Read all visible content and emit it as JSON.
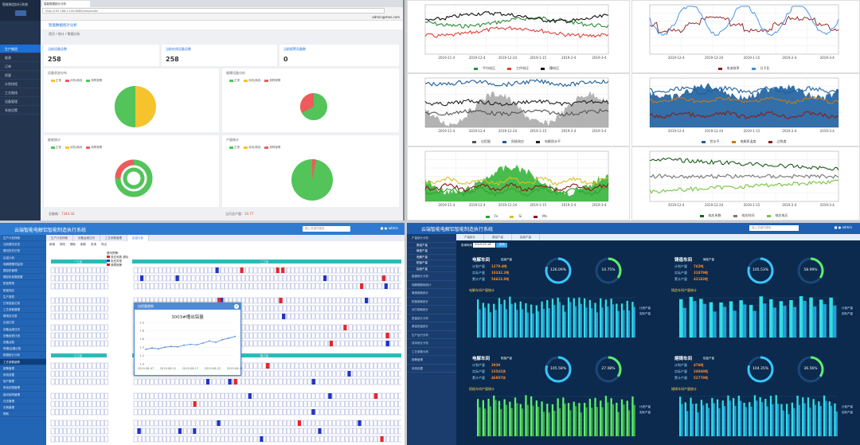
{
  "q1": {
    "brand": "智能制造执行系统",
    "sidebar": [
      "生产制造",
      "能源",
      "订单",
      "质量",
      "计划排程",
      "工艺路线",
      "设备管理",
      "系统设置"
    ],
    "browser_tab": "智能数据统计分析",
    "address": "http://192.168.1.100:8080/mes/index",
    "user": "admin@mes.com",
    "header": "智能数据统计分析",
    "crumb": "首页 / 统计 / 数据分析",
    "stats": [
      {
        "label": "当前设备总数",
        "value": "258"
      },
      {
        "label": "当前在线设备总数",
        "value": "258"
      },
      {
        "label": "当前报警设备数",
        "value": "0"
      }
    ],
    "panels": [
      {
        "title": "设备状态分布",
        "legend": [
          "正常",
          "待机/离线",
          "故障报警"
        ]
      },
      {
        "title": "故障设备分析",
        "legend": [
          "正常",
          "待机/离线",
          "故障报警"
        ]
      },
      {
        "title": "能耗统计",
        "legend": [
          "正常",
          "待机/离线",
          "故障报警"
        ]
      },
      {
        "title": "产量统计",
        "legend": [
          "正常",
          "待机/离线",
          "故障报警"
        ]
      }
    ],
    "footer_left_label": "总能耗：",
    "footer_left_value": "7344.32",
    "footer_right_label": "当月总产量：",
    "footer_right_value": "10.77",
    "colors": {
      "green": "#52c45a",
      "yellow": "#f5c42c",
      "red": "#ef5b5b"
    }
  },
  "q2": {
    "charts": [
      {
        "legend": [
          "平均电压",
          "工作电压",
          "槽电压"
        ],
        "colors": [
          "#2f8c38",
          "#e0413a",
          "#111111"
        ]
      },
      {
        "legend": [
          "电流效率",
          "分子比"
        ],
        "colors": [
          "#8c1b1b",
          "#3a8ee6"
        ]
      },
      {
        "legend": [
          "出铝量",
          "阳极效应",
          "电解质水平"
        ],
        "colors": [
          "#555555",
          "#1b5c9a",
          "#222222"
        ]
      },
      {
        "legend": [
          "铝水平",
          "电解质温度",
          "过热度"
        ],
        "colors": [
          "#1d5f9f",
          "#c77a1a",
          "#8c1b1b"
        ]
      },
      {
        "legend": [
          "Fe",
          "Si",
          "Mn"
        ],
        "colors": [
          "#2fa32f",
          "#d7c21c",
          "#8c1b1b"
        ]
      },
      {
        "legend": [
          "效应系数",
          "效应时间",
          "效应电压"
        ],
        "colors": [
          "#1b5e20",
          "#777777",
          "#76c442"
        ]
      }
    ],
    "x_ticks": [
      "2019-11-4",
      "2019-12-4",
      "2019-12-24",
      "2019-1-15",
      "2019-2-4",
      "2019-3-4"
    ],
    "x_ticks_short": [
      "2019-12-4",
      "2019-12-24",
      "2019-1-15",
      "2019-2-4",
      "2019-3-4"
    ]
  },
  "q3": {
    "title": "云端智能电解铝智能制造执行系统",
    "search": "输入关键词搜索",
    "user": "admin",
    "tabs": [
      "生产计划排程",
      "设备运维日历",
      "工艺参数管理",
      "出铝计划"
    ],
    "toolbar": [
      "新增",
      "修改",
      "删除",
      "刷新",
      "查询",
      "导出"
    ],
    "sidebar": [
      "生产计划排程",
      "当前槽况总览",
      "槽况历史记录",
      "出铝计划",
      "电解槽槽况监测",
      "槽控机管理",
      "槽控机参数配置",
      "阳极更换",
      "阳极效应",
      "生产报表",
      "日常巡检记录",
      "工艺参数管理",
      "槽电压记录",
      "出铝记录",
      "设备运维日历",
      "设备检修计划",
      "设备台账",
      "停槽/启槽记录",
      "数据统计分析",
      "工艺参数趋势",
      "报警管理",
      "系统设置",
      "用户管理",
      "角色权限管理",
      "组织架构管理",
      "日志管理",
      "字典管理",
      "帮助"
    ],
    "legend_title": "槽况预警：",
    "legend": [
      "效应系数 超标",
      "电压异常",
      "故障报警"
    ],
    "popup_head": "出铝量趋势",
    "popup_title": "3003#槽出铝量",
    "popup_x": [
      "2019-08-07",
      "2019-08-12",
      "2019-08-17",
      "2019-08-22",
      "2019-08-28"
    ],
    "popup_y": [
      "2.0",
      "1.8",
      "1.6",
      "1.4",
      "1.2",
      "1.0"
    ],
    "popup_values": [
      1.35,
      1.38,
      1.36,
      1.4,
      1.42,
      1.41,
      1.45,
      1.47,
      1.46,
      1.5,
      1.55,
      1.52,
      1.58,
      1.62,
      1.66
    ],
    "band_labels": [
      "一工区",
      "二工区",
      "三工区",
      "四工区"
    ]
  },
  "q4": {
    "title": "云端智能电解铝智能制造执行系统",
    "search": "输入关键词搜索",
    "user": "admin",
    "sidebar": [
      "产量统计分析",
      "原铝产量",
      "铸造产量",
      "电解产量",
      "阳极产量",
      "铝液产量",
      "能源统计分析",
      "电解槽能耗统计",
      "铸造能耗统计",
      "阳极能耗统计",
      "动力能耗统计",
      "质量统计分析",
      "原铝质量统计",
      "生产运行分析",
      "成本统计分析",
      "工艺参数分析",
      "报警管理",
      "系统设置"
    ],
    "tabs": [
      "产量统计",
      "原铝产量",
      "铝液产量"
    ],
    "query_label": "查询时间",
    "query_value": "2019-03-18",
    "query_btn": "查询",
    "workshops": [
      {
        "name": "电解车间",
        "kind": "铝液产量",
        "rows": [
          [
            "计划产量",
            "1279.4吨"
          ],
          [
            "实际产量",
            "10332.2吨"
          ],
          [
            "累计产量",
            "54623.8吨"
          ]
        ],
        "g1": "126.09%",
        "g2": "10.75%",
        "section": "电解车间产量统计"
      },
      {
        "name": "铸造车间",
        "kind": "铸锭产量",
        "rows": [
          [
            "计划产量",
            "742吨"
          ],
          [
            "实际产量",
            "31879吨"
          ],
          [
            "累计产量",
            "42183吨"
          ]
        ],
        "g1": "105.53%",
        "g2": "58.99%",
        "section": "铸造车间产量统计"
      },
      {
        "name": "电解车间",
        "kind": "阳极产量",
        "rows": [
          [
            "计划产量",
            "2939"
          ],
          [
            "实际产量",
            "23541块"
          ],
          [
            "累计产量",
            "46887块"
          ]
        ],
        "g1": "105.58%",
        "g2": "27.08%",
        "section": "阳极车间产量统计"
      },
      {
        "name": "熔铸车间",
        "kind": "铝锭产量",
        "rows": [
          [
            "计划产量",
            "476吨"
          ],
          [
            "实际产量",
            "24948吨"
          ],
          [
            "累计产量",
            "52778吨"
          ]
        ],
        "g1": "104.35%",
        "g2": "36.56%",
        "section": "熔铸车间产量统计"
      }
    ],
    "legend": [
      "计划产量",
      "实际产量"
    ]
  }
}
